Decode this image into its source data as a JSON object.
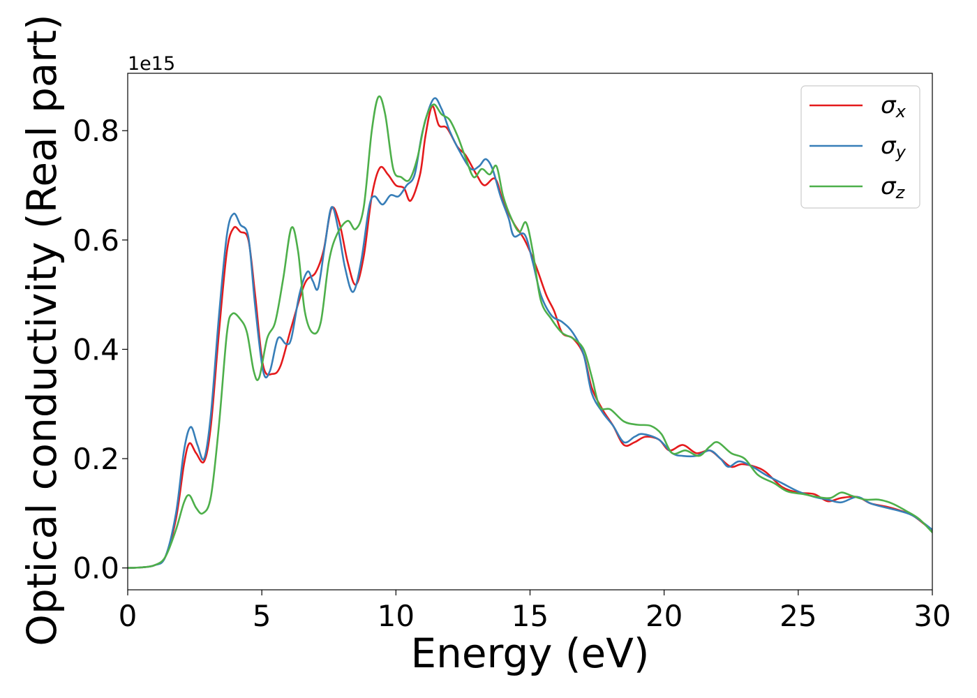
{
  "chart_data": {
    "type": "line",
    "title": "",
    "xlabel": "Energy (eV)",
    "ylabel": "Optical conductivity (Real part)",
    "y_offset_label": "1e15",
    "xlim": [
      0,
      30
    ],
    "ylim": [
      -0.04,
      0.905
    ],
    "x_ticks": [
      0,
      5,
      10,
      15,
      20,
      25,
      30
    ],
    "x_tick_labels": [
      "0",
      "5",
      "10",
      "15",
      "20",
      "25",
      "30"
    ],
    "y_ticks": [
      0.0,
      0.2,
      0.4,
      0.6,
      0.8
    ],
    "y_tick_labels": [
      "0.0",
      "0.2",
      "0.4",
      "0.6",
      "0.8"
    ],
    "grid": false,
    "legend_position": "top-right",
    "series": [
      {
        "name": "σx",
        "symbol": "σ",
        "subscript": "x",
        "color": "#e41a1c",
        "points": [
          [
            0,
            0
          ],
          [
            0.5,
            0.001
          ],
          [
            1,
            0.005
          ],
          [
            1.4,
            0.02
          ],
          [
            1.8,
            0.09
          ],
          [
            2.1,
            0.19
          ],
          [
            2.3,
            0.228
          ],
          [
            2.55,
            0.21
          ],
          [
            2.85,
            0.195
          ],
          [
            3.1,
            0.26
          ],
          [
            3.4,
            0.43
          ],
          [
            3.7,
            0.58
          ],
          [
            3.95,
            0.622
          ],
          [
            4.2,
            0.615
          ],
          [
            4.5,
            0.6
          ],
          [
            4.75,
            0.5
          ],
          [
            5.05,
            0.37
          ],
          [
            5.4,
            0.355
          ],
          [
            5.7,
            0.37
          ],
          [
            6.1,
            0.44
          ],
          [
            6.6,
            0.52
          ],
          [
            7.0,
            0.54
          ],
          [
            7.3,
            0.58
          ],
          [
            7.6,
            0.658
          ],
          [
            7.9,
            0.63
          ],
          [
            8.2,
            0.56
          ],
          [
            8.5,
            0.518
          ],
          [
            8.8,
            0.57
          ],
          [
            9.1,
            0.68
          ],
          [
            9.4,
            0.732
          ],
          [
            9.7,
            0.72
          ],
          [
            10.0,
            0.7
          ],
          [
            10.3,
            0.695
          ],
          [
            10.55,
            0.672
          ],
          [
            10.9,
            0.72
          ],
          [
            11.1,
            0.79
          ],
          [
            11.35,
            0.845
          ],
          [
            11.6,
            0.81
          ],
          [
            11.9,
            0.805
          ],
          [
            12.3,
            0.77
          ],
          [
            12.6,
            0.755
          ],
          [
            13.0,
            0.72
          ],
          [
            13.3,
            0.7
          ],
          [
            13.7,
            0.712
          ],
          [
            14.0,
            0.67
          ],
          [
            14.4,
            0.63
          ],
          [
            14.8,
            0.6
          ],
          [
            15.2,
            0.555
          ],
          [
            15.6,
            0.5
          ],
          [
            15.9,
            0.47
          ],
          [
            16.2,
            0.43
          ],
          [
            16.6,
            0.42
          ],
          [
            17.0,
            0.39
          ],
          [
            17.3,
            0.33
          ],
          [
            17.7,
            0.29
          ],
          [
            18.1,
            0.26
          ],
          [
            18.5,
            0.225
          ],
          [
            18.9,
            0.23
          ],
          [
            19.3,
            0.24
          ],
          [
            19.8,
            0.235
          ],
          [
            20.2,
            0.215
          ],
          [
            20.7,
            0.225
          ],
          [
            21.2,
            0.21
          ],
          [
            21.7,
            0.215
          ],
          [
            22.1,
            0.2
          ],
          [
            22.5,
            0.185
          ],
          [
            22.9,
            0.19
          ],
          [
            23.4,
            0.185
          ],
          [
            23.8,
            0.175
          ],
          [
            24.4,
            0.148
          ],
          [
            25.0,
            0.138
          ],
          [
            25.6,
            0.135
          ],
          [
            26.1,
            0.122
          ],
          [
            26.6,
            0.128
          ],
          [
            27.2,
            0.13
          ],
          [
            27.7,
            0.118
          ],
          [
            28.3,
            0.112
          ],
          [
            28.8,
            0.105
          ],
          [
            29.3,
            0.095
          ],
          [
            30,
            0.068
          ]
        ]
      },
      {
        "name": "σy",
        "symbol": "σ",
        "subscript": "y",
        "color": "#377eb8",
        "points": [
          [
            0,
            0
          ],
          [
            0.5,
            0.001
          ],
          [
            1,
            0.005
          ],
          [
            1.4,
            0.02
          ],
          [
            1.8,
            0.1
          ],
          [
            2.1,
            0.215
          ],
          [
            2.35,
            0.258
          ],
          [
            2.6,
            0.225
          ],
          [
            2.85,
            0.2
          ],
          [
            3.1,
            0.28
          ],
          [
            3.4,
            0.46
          ],
          [
            3.7,
            0.61
          ],
          [
            3.95,
            0.648
          ],
          [
            4.2,
            0.628
          ],
          [
            4.5,
            0.605
          ],
          [
            4.75,
            0.48
          ],
          [
            5.05,
            0.36
          ],
          [
            5.3,
            0.36
          ],
          [
            5.6,
            0.42
          ],
          [
            5.9,
            0.41
          ],
          [
            6.1,
            0.42
          ],
          [
            6.4,
            0.5
          ],
          [
            6.7,
            0.542
          ],
          [
            6.9,
            0.525
          ],
          [
            7.1,
            0.512
          ],
          [
            7.35,
            0.59
          ],
          [
            7.6,
            0.66
          ],
          [
            7.85,
            0.62
          ],
          [
            8.1,
            0.55
          ],
          [
            8.4,
            0.505
          ],
          [
            8.7,
            0.56
          ],
          [
            9.0,
            0.66
          ],
          [
            9.2,
            0.68
          ],
          [
            9.5,
            0.665
          ],
          [
            9.8,
            0.682
          ],
          [
            10.1,
            0.68
          ],
          [
            10.4,
            0.7
          ],
          [
            10.7,
            0.72
          ],
          [
            11.0,
            0.8
          ],
          [
            11.4,
            0.858
          ],
          [
            11.7,
            0.84
          ],
          [
            12.0,
            0.8
          ],
          [
            12.4,
            0.76
          ],
          [
            12.8,
            0.73
          ],
          [
            13.1,
            0.735
          ],
          [
            13.35,
            0.748
          ],
          [
            13.6,
            0.73
          ],
          [
            13.9,
            0.68
          ],
          [
            14.2,
            0.64
          ],
          [
            14.4,
            0.607
          ],
          [
            14.8,
            0.61
          ],
          [
            15.1,
            0.56
          ],
          [
            15.4,
            0.5
          ],
          [
            15.8,
            0.462
          ],
          [
            16.2,
            0.45
          ],
          [
            16.6,
            0.43
          ],
          [
            17.0,
            0.39
          ],
          [
            17.3,
            0.32
          ],
          [
            17.7,
            0.285
          ],
          [
            18.1,
            0.26
          ],
          [
            18.5,
            0.23
          ],
          [
            18.9,
            0.24
          ],
          [
            19.2,
            0.245
          ],
          [
            19.8,
            0.235
          ],
          [
            20.3,
            0.21
          ],
          [
            20.7,
            0.205
          ],
          [
            21.2,
            0.205
          ],
          [
            21.7,
            0.215
          ],
          [
            22.1,
            0.2
          ],
          [
            22.4,
            0.185
          ],
          [
            22.8,
            0.195
          ],
          [
            23.3,
            0.185
          ],
          [
            23.8,
            0.17
          ],
          [
            24.4,
            0.155
          ],
          [
            25.0,
            0.14
          ],
          [
            25.6,
            0.13
          ],
          [
            26.1,
            0.125
          ],
          [
            26.6,
            0.12
          ],
          [
            27.2,
            0.13
          ],
          [
            27.7,
            0.118
          ],
          [
            28.3,
            0.11
          ],
          [
            28.8,
            0.104
          ],
          [
            29.3,
            0.095
          ],
          [
            30,
            0.07
          ]
        ]
      },
      {
        "name": "σz",
        "symbol": "σ",
        "subscript": "z",
        "color": "#4daf4a",
        "points": [
          [
            0,
            0
          ],
          [
            0.5,
            0.001
          ],
          [
            1,
            0.005
          ],
          [
            1.4,
            0.02
          ],
          [
            1.8,
            0.07
          ],
          [
            2.1,
            0.12
          ],
          [
            2.3,
            0.133
          ],
          [
            2.55,
            0.11
          ],
          [
            2.8,
            0.1
          ],
          [
            3.1,
            0.13
          ],
          [
            3.4,
            0.26
          ],
          [
            3.7,
            0.43
          ],
          [
            3.9,
            0.465
          ],
          [
            4.2,
            0.455
          ],
          [
            4.45,
            0.43
          ],
          [
            4.7,
            0.36
          ],
          [
            4.9,
            0.348
          ],
          [
            5.2,
            0.42
          ],
          [
            5.5,
            0.45
          ],
          [
            5.8,
            0.53
          ],
          [
            6.1,
            0.622
          ],
          [
            6.35,
            0.58
          ],
          [
            6.6,
            0.47
          ],
          [
            6.9,
            0.43
          ],
          [
            7.2,
            0.45
          ],
          [
            7.5,
            0.56
          ],
          [
            7.8,
            0.61
          ],
          [
            8.2,
            0.635
          ],
          [
            8.5,
            0.62
          ],
          [
            8.8,
            0.66
          ],
          [
            9.1,
            0.8
          ],
          [
            9.35,
            0.862
          ],
          [
            9.6,
            0.83
          ],
          [
            9.9,
            0.73
          ],
          [
            10.2,
            0.715
          ],
          [
            10.5,
            0.71
          ],
          [
            10.8,
            0.75
          ],
          [
            11.1,
            0.82
          ],
          [
            11.4,
            0.848
          ],
          [
            11.7,
            0.83
          ],
          [
            12.0,
            0.82
          ],
          [
            12.3,
            0.79
          ],
          [
            12.6,
            0.75
          ],
          [
            12.9,
            0.715
          ],
          [
            13.2,
            0.73
          ],
          [
            13.5,
            0.72
          ],
          [
            13.75,
            0.735
          ],
          [
            14.0,
            0.68
          ],
          [
            14.3,
            0.64
          ],
          [
            14.6,
            0.615
          ],
          [
            14.85,
            0.632
          ],
          [
            15.1,
            0.58
          ],
          [
            15.4,
            0.49
          ],
          [
            15.8,
            0.455
          ],
          [
            16.2,
            0.43
          ],
          [
            16.6,
            0.42
          ],
          [
            17.0,
            0.4
          ],
          [
            17.3,
            0.35
          ],
          [
            17.6,
            0.295
          ],
          [
            18.0,
            0.29
          ],
          [
            18.5,
            0.268
          ],
          [
            19.0,
            0.262
          ],
          [
            19.5,
            0.26
          ],
          [
            19.9,
            0.245
          ],
          [
            20.3,
            0.21
          ],
          [
            20.8,
            0.215
          ],
          [
            21.3,
            0.205
          ],
          [
            21.7,
            0.222
          ],
          [
            22.0,
            0.23
          ],
          [
            22.5,
            0.21
          ],
          [
            23.0,
            0.2
          ],
          [
            23.5,
            0.17
          ],
          [
            24.1,
            0.155
          ],
          [
            24.6,
            0.14
          ],
          [
            25.2,
            0.135
          ],
          [
            25.7,
            0.13
          ],
          [
            26.2,
            0.128
          ],
          [
            26.6,
            0.138
          ],
          [
            27.0,
            0.132
          ],
          [
            27.5,
            0.125
          ],
          [
            28.0,
            0.125
          ],
          [
            28.5,
            0.118
          ],
          [
            29.0,
            0.105
          ],
          [
            29.5,
            0.09
          ],
          [
            30,
            0.065
          ]
        ]
      }
    ]
  }
}
